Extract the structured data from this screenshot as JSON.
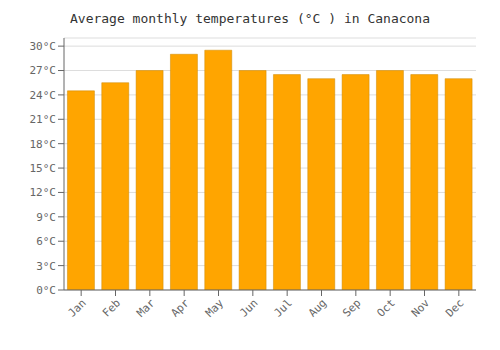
{
  "chart_data": {
    "type": "bar",
    "title": "Average monthly temperatures (°C ) in Canacona",
    "categories": [
      "Jan",
      "Feb",
      "Mar",
      "Apr",
      "May",
      "Jun",
      "Jul",
      "Aug",
      "Sep",
      "Oct",
      "Nov",
      "Dec"
    ],
    "values": [
      24.5,
      25.5,
      27.0,
      29.0,
      29.5,
      27.0,
      26.5,
      26.0,
      26.5,
      27.0,
      26.5,
      26.0
    ],
    "color": "#FFA500",
    "ylim": [
      0,
      31
    ],
    "yticks": [
      {
        "value": 0,
        "label": "0°C"
      },
      {
        "value": 3,
        "label": "3°C"
      },
      {
        "value": 6,
        "label": "6°C"
      },
      {
        "value": 9,
        "label": "9°C"
      },
      {
        "value": 12,
        "label": "12°C"
      },
      {
        "value": 15,
        "label": "15°C"
      },
      {
        "value": 18,
        "label": "18°C"
      },
      {
        "value": 21,
        "label": "21°C"
      },
      {
        "value": 24,
        "label": "24°C"
      },
      {
        "value": 27,
        "label": "27°C"
      },
      {
        "value": 30,
        "label": "30°C"
      }
    ],
    "grid": true
  }
}
